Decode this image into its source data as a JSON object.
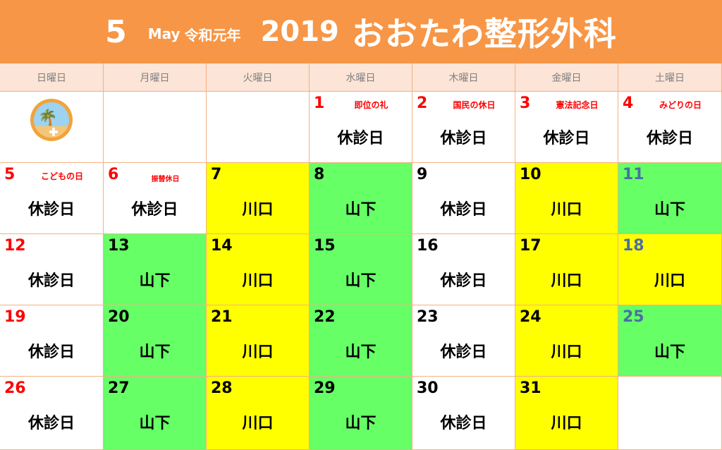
{
  "title": {
    "month": "5",
    "month_en": "May",
    "era": "令和元年",
    "year": "2019",
    "clinic": "おおたわ整形外科"
  },
  "weekdays": [
    "日曜日",
    "月曜日",
    "火曜日",
    "水曜日",
    "木曜日",
    "金曜日",
    "土曜日"
  ],
  "colors": {
    "banner": "#f79646",
    "header": "#fce4d6",
    "kawaguchi": "#ffff00",
    "yamashita": "#66ff66",
    "holiday_red": "#ff0000",
    "saturday_blue": "#4a6fa5"
  },
  "weeks": [
    [
      {
        "logo": true
      },
      {},
      {},
      {
        "day": "1",
        "holiday": "即位の礼",
        "status": "休診日",
        "color": "red"
      },
      {
        "day": "2",
        "holiday": "国民の休日",
        "status": "休診日",
        "color": "red"
      },
      {
        "day": "3",
        "holiday": "憲法記念日",
        "status": "休診日",
        "color": "red"
      },
      {
        "day": "4",
        "holiday": "みどりの日",
        "status": "休診日",
        "color": "red"
      }
    ],
    [
      {
        "day": "5",
        "holiday": "こどもの日",
        "status": "休診日",
        "color": "red"
      },
      {
        "day": "6",
        "holiday": "振替休日",
        "status": "休診日",
        "color": "red",
        "small": true
      },
      {
        "day": "7",
        "status": "川口",
        "bg": "kawaguchi"
      },
      {
        "day": "8",
        "status": "山下",
        "bg": "yamashita"
      },
      {
        "day": "9",
        "status": "休診日"
      },
      {
        "day": "10",
        "status": "川口",
        "bg": "kawaguchi"
      },
      {
        "day": "11",
        "status": "山下",
        "bg": "yamashita",
        "color": "blue"
      }
    ],
    [
      {
        "day": "12",
        "status": "休診日",
        "color": "red"
      },
      {
        "day": "13",
        "status": "山下",
        "bg": "yamashita"
      },
      {
        "day": "14",
        "status": "川口",
        "bg": "kawaguchi"
      },
      {
        "day": "15",
        "status": "山下",
        "bg": "yamashita"
      },
      {
        "day": "16",
        "status": "休診日"
      },
      {
        "day": "17",
        "status": "川口",
        "bg": "kawaguchi"
      },
      {
        "day": "18",
        "status": "川口",
        "bg": "kawaguchi",
        "color": "blue"
      }
    ],
    [
      {
        "day": "19",
        "status": "休診日",
        "color": "red"
      },
      {
        "day": "20",
        "status": "山下",
        "bg": "yamashita"
      },
      {
        "day": "21",
        "status": "川口",
        "bg": "kawaguchi"
      },
      {
        "day": "22",
        "status": "山下",
        "bg": "yamashita"
      },
      {
        "day": "23",
        "status": "休診日"
      },
      {
        "day": "24",
        "status": "川口",
        "bg": "kawaguchi"
      },
      {
        "day": "25",
        "status": "山下",
        "bg": "yamashita",
        "color": "blue"
      }
    ],
    [
      {
        "day": "26",
        "status": "休診日",
        "color": "red"
      },
      {
        "day": "27",
        "status": "山下",
        "bg": "yamashita"
      },
      {
        "day": "28",
        "status": "川口",
        "bg": "kawaguchi"
      },
      {
        "day": "29",
        "status": "山下",
        "bg": "yamashita"
      },
      {
        "day": "30",
        "status": "休診日"
      },
      {
        "day": "31",
        "status": "川口",
        "bg": "kawaguchi"
      },
      {}
    ]
  ]
}
